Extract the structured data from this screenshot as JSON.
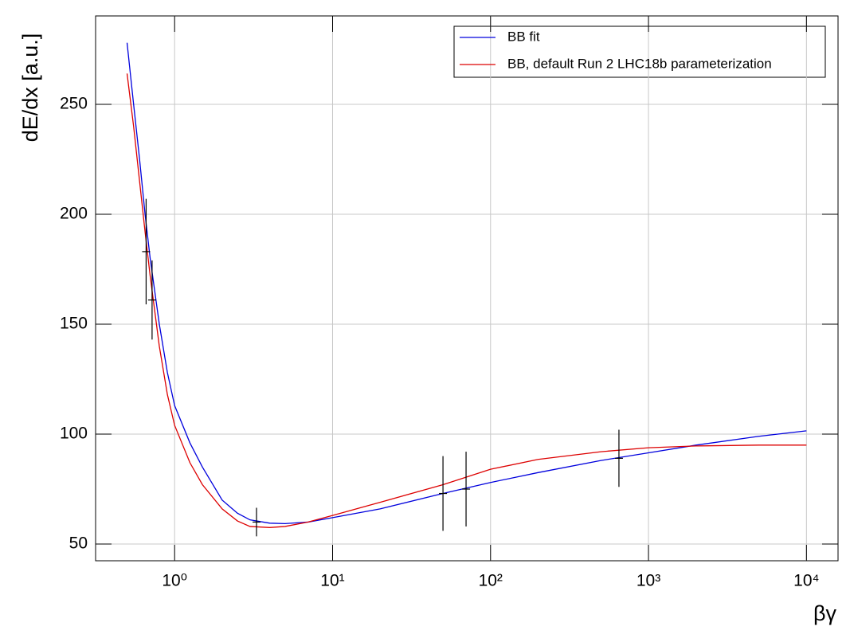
{
  "chart_data": {
    "type": "line",
    "xlabel": "βγ",
    "ylabel": "dE/dx [a.u.]",
    "xscale": "log",
    "grid": true,
    "legend": "upper right",
    "xlim": [
      0.316,
      15850
    ],
    "ylim": [
      42.4,
      290.2
    ],
    "xticks": [
      {
        "value": 1,
        "label": "10⁰"
      },
      {
        "value": 10,
        "label": "10¹"
      },
      {
        "value": 100,
        "label": "10²"
      },
      {
        "value": 1000,
        "label": "10³"
      },
      {
        "value": 10000,
        "label": "10⁴"
      }
    ],
    "yticks": [
      50,
      100,
      150,
      200,
      250
    ],
    "series": [
      {
        "name": "BB fit",
        "color": "#0000dd",
        "x": [
          0.5,
          0.55,
          0.6,
          0.65,
          0.7,
          0.8,
          0.9,
          1.0,
          1.25,
          1.5,
          2,
          2.5,
          3,
          4,
          5,
          7,
          10,
          20,
          50,
          100,
          200,
          500,
          1000,
          2000,
          5000,
          10000
        ],
        "values": [
          278,
          250,
          225,
          200,
          180,
          150,
          128,
          113,
          96,
          85,
          70,
          64,
          61,
          59.5,
          59.3,
          60,
          62,
          66,
          73,
          78,
          82.5,
          88,
          91.5,
          95,
          99,
          101.5
        ]
      },
      {
        "name": "BB, default Run 2 LHC18b parameterization",
        "color": "#dd0000",
        "x": [
          0.5,
          0.55,
          0.6,
          0.65,
          0.7,
          0.8,
          0.9,
          1.0,
          1.25,
          1.5,
          2,
          2.5,
          3,
          4,
          5,
          7,
          10,
          20,
          50,
          100,
          200,
          500,
          1000,
          2000,
          5000,
          10000
        ],
        "values": [
          264,
          240,
          215,
          192,
          172,
          140,
          118,
          104,
          87,
          77,
          66,
          60.5,
          58,
          57.5,
          58,
          60,
          63,
          69,
          77,
          84,
          88.5,
          92,
          93.8,
          94.6,
          95,
          95
        ]
      }
    ],
    "points": {
      "color": "#000000",
      "x": [
        0.66,
        0.72,
        3.3,
        50,
        70,
        650
      ],
      "values": [
        183,
        161,
        60,
        73,
        75,
        89
      ],
      "errors": [
        24,
        18,
        6.5,
        17,
        17,
        13
      ]
    }
  }
}
